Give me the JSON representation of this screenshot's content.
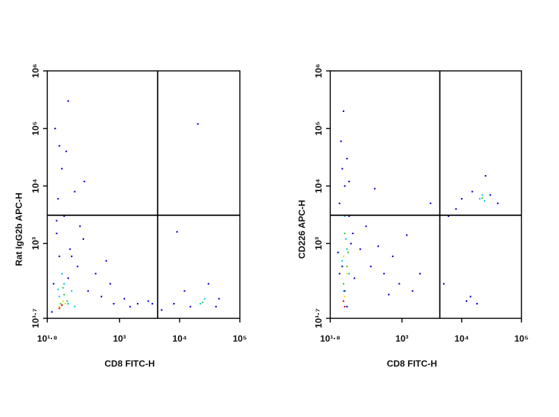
{
  "chart_data": [
    {
      "type": "scatter",
      "x_label": "CD8 FITC-H",
      "y_label": "Rat IgG2b APC-H",
      "log_x": true,
      "log_y": true,
      "xlim": [
        63.1,
        100000
      ],
      "ylim": [
        50.1,
        1000000
      ],
      "xticks": [
        {
          "value": 63.1,
          "label": "10¹·⁸"
        },
        {
          "value": 1000,
          "label": "10³"
        },
        {
          "value": 10000,
          "label": "10⁴"
        },
        {
          "value": 100000,
          "label": "10⁵"
        }
      ],
      "yticks": [
        {
          "value": 50.1,
          "label": "10¹·⁷"
        },
        {
          "value": 1000,
          "label": "10³"
        },
        {
          "value": 10000,
          "label": "10⁴"
        },
        {
          "value": 100000,
          "label": "10⁵"
        },
        {
          "value": 1000000,
          "label": "10⁶"
        }
      ],
      "gates": {
        "x": 4300,
        "y": 3100
      },
      "series": [
        {
          "color": "#0000cc",
          "x": [
            80,
            90,
            120,
            150,
            200,
            300,
            500,
            800,
            1500,
            3000,
            5000,
            8000,
            12000,
            40000,
            95,
            110,
            130,
            180,
            90,
            100,
            140,
            250,
            400,
            700,
            1200,
            2000,
            100,
            85,
            160,
            3500,
            15000,
            30000,
            45000,
            220,
            140,
            600,
            20000,
            9000,
            260,
            75
          ],
          "values": [
            200,
            1500,
            3000,
            800,
            400,
            150,
            120,
            90,
            80,
            100,
            70,
            90,
            150,
            80,
            6000,
            20000,
            40000,
            8000,
            2500,
            600,
            250,
            1200,
            300,
            200,
            110,
            90,
            50000,
            100000,
            600,
            90,
            80,
            200,
            110,
            2000,
            300000,
            500,
            120000,
            1600,
            12000,
            65
          ]
        },
        {
          "color": "#00c8e6",
          "x": [
            100,
            120,
            140,
            160,
            110,
            22000,
            26000,
            180,
            95
          ],
          "values": [
            120,
            200,
            90,
            150,
            300,
            90,
            110,
            80,
            160
          ]
        },
        {
          "color": "#3cc83c",
          "x": [
            105,
            120,
            135,
            115,
            24000
          ],
          "values": [
            90,
            130,
            100,
            170,
            95
          ]
        },
        {
          "color": "#f0e000",
          "x": [
            100,
            115,
            125
          ],
          "values": [
            80,
            100,
            90
          ]
        },
        {
          "color": "#e60000",
          "x": [
            100,
            110
          ],
          "values": [
            75,
            85
          ]
        }
      ]
    },
    {
      "type": "scatter",
      "x_label": "CD8 FITC-H",
      "y_label": "CD226 APC-H",
      "log_x": true,
      "log_y": true,
      "xlim": [
        63.1,
        100000
      ],
      "ylim": [
        50.1,
        1000000
      ],
      "xticks": [
        {
          "value": 63.1,
          "label": "10¹·⁸"
        },
        {
          "value": 1000,
          "label": "10³"
        },
        {
          "value": 10000,
          "label": "10⁴"
        },
        {
          "value": 100000,
          "label": "10⁵"
        }
      ],
      "yticks": [
        {
          "value": 50.1,
          "label": "10¹·⁷"
        },
        {
          "value": 1000,
          "label": "10³"
        },
        {
          "value": 10000,
          "label": "10⁴"
        },
        {
          "value": 100000,
          "label": "10⁵"
        },
        {
          "value": 1000000,
          "label": "10⁶"
        }
      ],
      "gates": {
        "x": 4300,
        "y": 3100
      },
      "series": [
        {
          "color": "#0000cc",
          "x": [
            90,
            100,
            110,
            130,
            150,
            200,
            300,
            500,
            900,
            1500,
            3000,
            6000,
            8000,
            15000,
            30000,
            40000,
            95,
            105,
            120,
            140,
            250,
            400,
            700,
            12000,
            18000,
            100,
            110,
            120,
            85,
            160,
            2000,
            5000,
            25000,
            10000,
            350,
            600,
            90,
            130,
            14000,
            1200
          ],
          "values": [
            5000,
            20000,
            10000,
            3000,
            1500,
            800,
            400,
            300,
            200,
            150,
            5000,
            3000,
            4000,
            8000,
            7000,
            5000,
            60000,
            200000,
            30000,
            1000,
            2000,
            900,
            600,
            100,
            90,
            400,
            150,
            80,
            700,
            250,
            300,
            200,
            15000,
            6000,
            9000,
            130,
            300,
            12000,
            120,
            1400
          ]
        },
        {
          "color": "#00c8e6",
          "x": [
            100,
            115,
            130,
            110,
            120,
            20000,
            24000,
            22000,
            105
          ],
          "values": [
            500,
            1200,
            300,
            3000,
            800,
            6000,
            5500,
            7000,
            150
          ]
        },
        {
          "color": "#3cc83c",
          "x": [
            105,
            120,
            110,
            125,
            22000
          ],
          "values": [
            200,
            400,
            1500,
            700,
            6200
          ]
        },
        {
          "color": "#f0e000",
          "x": [
            110,
            120,
            105
          ],
          "values": [
            120,
            300,
            600
          ]
        },
        {
          "color": "#e60000",
          "x": [
            110,
            105
          ],
          "values": [
            80,
            100
          ]
        }
      ]
    }
  ]
}
